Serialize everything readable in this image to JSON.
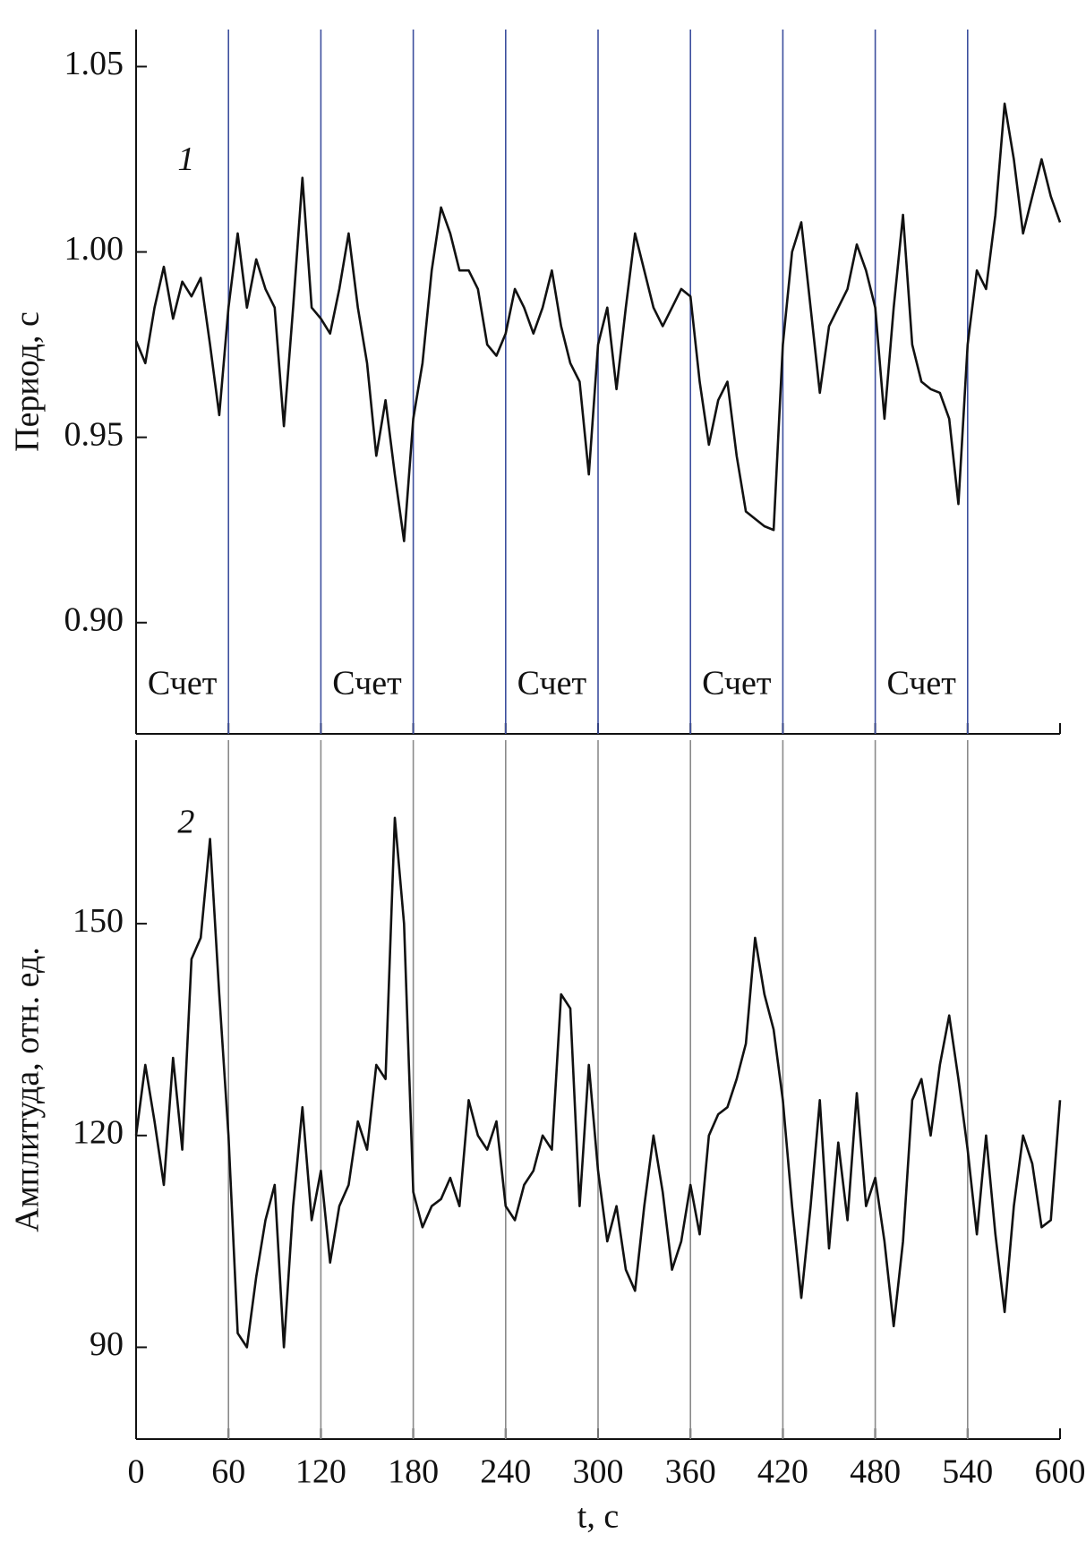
{
  "chart_data": [
    {
      "type": "line",
      "ylabel": "Период, с",
      "xlim": [
        0,
        600
      ],
      "xticks": [
        0,
        60,
        120,
        180,
        240,
        300,
        360,
        420,
        480,
        540,
        600
      ],
      "ylim": [
        0.87,
        1.06
      ],
      "yticks": [
        {
          "value": 0.9,
          "label": "0.90"
        },
        0.95,
        {
          "value": 1.0,
          "label": "1.00"
        },
        1.05
      ],
      "vline_color": "#3d4f9e",
      "annotations": [
        {
          "text": "Счет",
          "x": [
            0,
            60
          ]
        },
        {
          "text": "Счет",
          "x": [
            120,
            180
          ]
        },
        {
          "text": "Счет",
          "x": [
            240,
            300
          ]
        },
        {
          "text": "Счет",
          "x": [
            360,
            420
          ]
        },
        {
          "text": "Счет",
          "x": [
            480,
            540
          ]
        }
      ],
      "x": [
        0,
        6,
        12,
        18,
        24,
        30,
        36,
        42,
        48,
        54,
        60,
        66,
        72,
        78,
        84,
        90,
        96,
        102,
        108,
        114,
        120,
        126,
        132,
        138,
        144,
        150,
        156,
        162,
        168,
        174,
        180,
        186,
        192,
        198,
        204,
        210,
        216,
        222,
        228,
        234,
        240,
        246,
        252,
        258,
        264,
        270,
        276,
        282,
        288,
        294,
        300,
        306,
        312,
        318,
        324,
        330,
        336,
        342,
        348,
        354,
        360,
        366,
        372,
        378,
        384,
        390,
        396,
        402,
        408,
        414,
        420,
        426,
        432,
        438,
        444,
        450,
        456,
        462,
        468,
        474,
        480,
        486,
        492,
        498,
        504,
        510,
        516,
        522,
        528,
        534,
        540,
        546,
        552,
        558,
        564,
        570,
        576,
        582,
        588,
        594,
        600
      ],
      "series": [
        {
          "name": "1",
          "color": "#111111",
          "values": [
            0.976,
            0.97,
            0.985,
            0.996,
            0.982,
            0.992,
            0.988,
            0.993,
            0.975,
            0.956,
            0.985,
            1.005,
            0.985,
            0.998,
            0.99,
            0.985,
            0.953,
            0.985,
            1.02,
            0.985,
            0.982,
            0.978,
            0.99,
            1.005,
            0.985,
            0.97,
            0.945,
            0.96,
            0.94,
            0.922,
            0.955,
            0.97,
            0.995,
            1.012,
            1.005,
            0.995,
            0.995,
            0.99,
            0.975,
            0.972,
            0.978,
            0.99,
            0.985,
            0.978,
            0.985,
            0.995,
            0.98,
            0.97,
            0.965,
            0.94,
            0.975,
            0.985,
            0.963,
            0.985,
            1.005,
            0.995,
            0.985,
            0.98,
            0.985,
            0.99,
            0.988,
            0.965,
            0.948,
            0.96,
            0.965,
            0.945,
            0.93,
            0.928,
            0.926,
            0.925,
            0.975,
            1.0,
            1.008,
            0.985,
            0.962,
            0.98,
            0.985,
            0.99,
            1.002,
            0.995,
            0.985,
            0.955,
            0.985,
            1.01,
            0.975,
            0.965,
            0.963,
            0.962,
            0.955,
            0.932,
            0.975,
            0.995,
            0.99,
            1.01,
            1.04,
            1.025,
            1.005,
            1.015,
            1.025,
            1.015,
            1.008
          ]
        }
      ]
    },
    {
      "type": "line",
      "ylabel": "Амплитуда, отн. ед.",
      "xlabel": "t, с",
      "xlim": [
        0,
        600
      ],
      "xticks": [
        0,
        60,
        120,
        180,
        240,
        300,
        360,
        420,
        480,
        540,
        600
      ],
      "ylim": [
        77,
        176
      ],
      "yticks": [
        90,
        120,
        150
      ],
      "vline_color": "#8a8a8a",
      "x": [
        0,
        6,
        12,
        18,
        24,
        30,
        36,
        42,
        48,
        54,
        60,
        66,
        72,
        78,
        84,
        90,
        96,
        102,
        108,
        114,
        120,
        126,
        132,
        138,
        144,
        150,
        156,
        162,
        168,
        174,
        180,
        186,
        192,
        198,
        204,
        210,
        216,
        222,
        228,
        234,
        240,
        246,
        252,
        258,
        264,
        270,
        276,
        282,
        288,
        294,
        300,
        306,
        312,
        318,
        324,
        330,
        336,
        342,
        348,
        354,
        360,
        366,
        372,
        378,
        384,
        390,
        396,
        402,
        408,
        414,
        420,
        426,
        432,
        438,
        444,
        450,
        456,
        462,
        468,
        474,
        480,
        486,
        492,
        498,
        504,
        510,
        516,
        522,
        528,
        534,
        540,
        546,
        552,
        558,
        564,
        570,
        576,
        582,
        588,
        594,
        600
      ],
      "series": [
        {
          "name": "2",
          "color": "#111111",
          "values": [
            120,
            130,
            122,
            113,
            131,
            118,
            145,
            148,
            162,
            140,
            120,
            92,
            90,
            100,
            108,
            113,
            90,
            110,
            124,
            108,
            115,
            102,
            110,
            113,
            122,
            118,
            130,
            128,
            165,
            150,
            112,
            107,
            110,
            111,
            114,
            110,
            125,
            120,
            118,
            122,
            110,
            108,
            113,
            115,
            120,
            118,
            140,
            138,
            110,
            130,
            115,
            105,
            110,
            101,
            98,
            110,
            120,
            112,
            101,
            105,
            113,
            106,
            120,
            123,
            124,
            128,
            133,
            148,
            140,
            135,
            125,
            110,
            97,
            110,
            125,
            104,
            119,
            108,
            126,
            110,
            114,
            105,
            93,
            105,
            125,
            128,
            120,
            130,
            137,
            128,
            118,
            106,
            120,
            106,
            95,
            110,
            120,
            116,
            107,
            108,
            125
          ]
        }
      ]
    }
  ]
}
